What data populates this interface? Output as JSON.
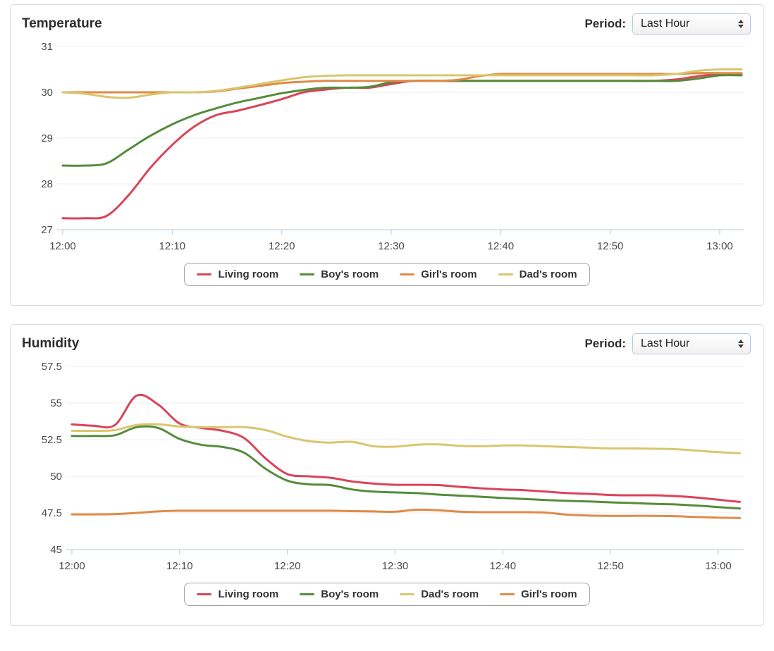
{
  "panels": [
    {
      "title": "Temperature",
      "period_label": "Period:",
      "period_value": "Last Hour"
    },
    {
      "title": "Humidity",
      "period_label": "Period:",
      "period_value": "Last Hour"
    }
  ],
  "chart_data": [
    {
      "type": "line",
      "title": "Temperature",
      "grid": true,
      "legend_position": "bottom",
      "ylim": [
        27,
        31
      ],
      "y_tick_values": [
        31,
        30,
        29,
        28,
        27
      ],
      "y_tick_labels": [
        "31",
        "30",
        "29",
        "28",
        "27"
      ],
      "x_ticks": [
        "12:00",
        "12:10",
        "12:20",
        "12:30",
        "12:40",
        "12:50",
        "13:00"
      ],
      "x_minutes": [
        0,
        2,
        4,
        6,
        8,
        10,
        12,
        14,
        16,
        18,
        20,
        22,
        24,
        26,
        28,
        30,
        32,
        34,
        36,
        38,
        40,
        42,
        44,
        46,
        48,
        50,
        52,
        54,
        56,
        58,
        60,
        62
      ],
      "series": [
        {
          "name": "Living room",
          "color": "#db4358",
          "values": [
            27.25,
            27.25,
            27.3,
            27.75,
            28.35,
            28.85,
            29.25,
            29.5,
            29.6,
            29.72,
            29.85,
            30.0,
            30.06,
            30.1,
            30.1,
            30.18,
            30.25,
            30.25,
            30.25,
            30.25,
            30.25,
            30.25,
            30.25,
            30.25,
            30.25,
            30.25,
            30.25,
            30.25,
            30.28,
            30.35,
            30.4,
            30.4
          ]
        },
        {
          "name": "Boy's room",
          "color": "#558c3c",
          "values": [
            28.4,
            28.4,
            28.45,
            28.75,
            29.05,
            29.3,
            29.5,
            29.65,
            29.78,
            29.88,
            29.98,
            30.05,
            30.1,
            30.1,
            30.12,
            30.22,
            30.25,
            30.25,
            30.25,
            30.25,
            30.25,
            30.25,
            30.25,
            30.25,
            30.25,
            30.25,
            30.25,
            30.25,
            30.25,
            30.3,
            30.37,
            30.37
          ]
        },
        {
          "name": "Girl's room",
          "color": "#e08a47",
          "values": [
            30.0,
            30.0,
            30.0,
            30.0,
            30.0,
            30.0,
            30.0,
            30.02,
            30.08,
            30.14,
            30.2,
            30.23,
            30.25,
            30.25,
            30.25,
            30.25,
            30.25,
            30.25,
            30.27,
            30.35,
            30.4,
            30.4,
            30.4,
            30.4,
            30.4,
            30.4,
            30.4,
            30.4,
            30.4,
            30.42,
            30.42,
            30.42
          ]
        },
        {
          "name": "Dad's room",
          "color": "#d9c66e",
          "values": [
            30.0,
            29.97,
            29.9,
            29.88,
            29.95,
            30.0,
            30.0,
            30.03,
            30.1,
            30.18,
            30.26,
            30.33,
            30.36,
            30.37,
            30.37,
            30.37,
            30.37,
            30.37,
            30.37,
            30.37,
            30.37,
            30.37,
            30.37,
            30.37,
            30.37,
            30.37,
            30.37,
            30.37,
            30.4,
            30.47,
            30.5,
            30.5
          ]
        }
      ]
    },
    {
      "type": "line",
      "title": "Humidity",
      "grid": true,
      "legend_position": "bottom",
      "ylim": [
        45,
        57.5
      ],
      "y_tick_values": [
        57.5,
        55,
        52.5,
        50,
        47.5,
        45
      ],
      "y_tick_labels": [
        "57.5",
        "55",
        "52.5",
        "50",
        "47.5",
        "45"
      ],
      "x_ticks": [
        "12:00",
        "12:10",
        "12:20",
        "12:30",
        "12:40",
        "12:50",
        "13:00"
      ],
      "x_minutes": [
        0,
        2,
        4,
        6,
        8,
        10,
        12,
        14,
        16,
        18,
        20,
        22,
        24,
        26,
        28,
        30,
        32,
        34,
        36,
        38,
        40,
        42,
        44,
        46,
        48,
        50,
        52,
        54,
        56,
        58,
        60,
        62
      ],
      "series": [
        {
          "name": "Living room",
          "color": "#db4358",
          "values": [
            53.55,
            53.45,
            53.5,
            55.5,
            54.9,
            53.6,
            53.3,
            53.1,
            52.6,
            51.2,
            50.15,
            50.0,
            49.9,
            49.65,
            49.5,
            49.42,
            49.42,
            49.4,
            49.28,
            49.18,
            49.1,
            49.05,
            48.95,
            48.85,
            48.8,
            48.72,
            48.7,
            48.7,
            48.65,
            48.55,
            48.4,
            48.25
          ]
        },
        {
          "name": "Boy's room",
          "color": "#558c3c",
          "values": [
            52.75,
            52.75,
            52.8,
            53.35,
            53.3,
            52.55,
            52.15,
            52.0,
            51.6,
            50.5,
            49.7,
            49.45,
            49.4,
            49.1,
            48.95,
            48.9,
            48.85,
            48.75,
            48.68,
            48.6,
            48.52,
            48.45,
            48.38,
            48.32,
            48.28,
            48.22,
            48.18,
            48.12,
            48.08,
            48.0,
            47.9,
            47.8
          ]
        },
        {
          "name": "Dad's room",
          "color": "#d9c66e",
          "values": [
            53.1,
            53.1,
            53.15,
            53.5,
            53.55,
            53.4,
            53.35,
            53.35,
            53.35,
            53.15,
            52.7,
            52.4,
            52.3,
            52.35,
            52.05,
            52.02,
            52.15,
            52.18,
            52.08,
            52.05,
            52.1,
            52.1,
            52.05,
            52.0,
            51.95,
            51.9,
            51.9,
            51.88,
            51.85,
            51.75,
            51.65,
            51.58
          ]
        },
        {
          "name": "Girl's room",
          "color": "#e08a47",
          "values": [
            47.4,
            47.4,
            47.42,
            47.5,
            47.6,
            47.65,
            47.65,
            47.65,
            47.65,
            47.65,
            47.65,
            47.65,
            47.65,
            47.62,
            47.6,
            47.58,
            47.72,
            47.68,
            47.58,
            47.55,
            47.55,
            47.55,
            47.52,
            47.38,
            47.32,
            47.3,
            47.3,
            47.3,
            47.28,
            47.22,
            47.18,
            47.15
          ]
        }
      ]
    }
  ],
  "axis_colors": {
    "axis_line": "#b3c8dc",
    "gridline": "#ededed",
    "tick_text": "#4c4c4c"
  }
}
